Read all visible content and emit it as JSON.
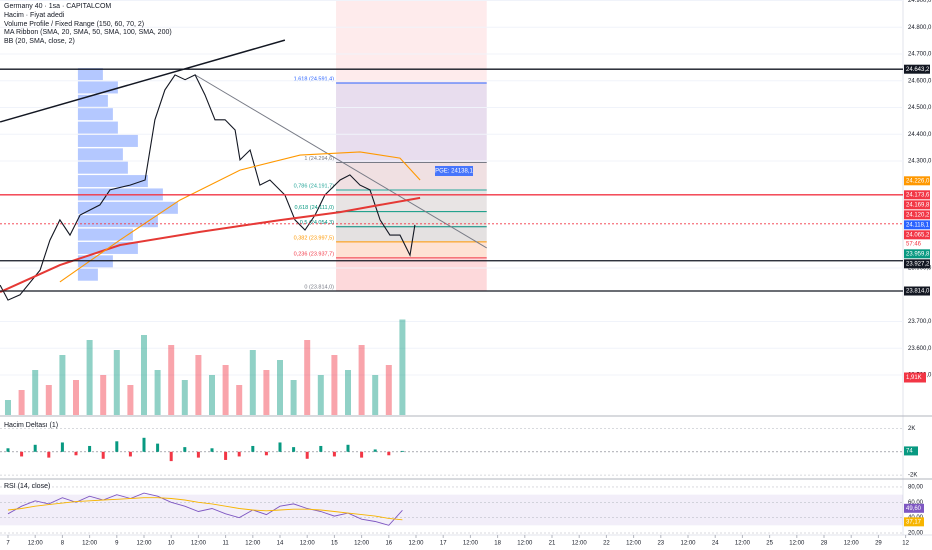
{
  "chart_data": [
    {
      "type": "line",
      "title": "Germany 40 · 1sa · CAPITALCOM",
      "legend_lines": [
        "Hacim · Fiyat adedi",
        "Volume Profile / Fixed Range (150, 60, 70, 2)",
        "MA Ribbon (SMA, 20, SMA, 50, SMA, 100, SMA, 200)",
        "BB (20, SMA, close, 2)"
      ],
      "annotation": "PGE: 24138,1",
      "countdown": "57:46",
      "xlim": [
        -0.294,
        32.904
      ],
      "ylim": [
        23350.5,
        24901.9
      ],
      "xticks": [
        {
          "value": 0,
          "label": "7"
        },
        {
          "value": 1,
          "label": "12:00"
        },
        {
          "value": 2,
          "label": "8"
        },
        {
          "value": 3,
          "label": "12:00"
        },
        {
          "value": 4,
          "label": "9"
        },
        {
          "value": 5,
          "label": "12:00"
        },
        {
          "value": 6,
          "label": "10"
        },
        {
          "value": 7,
          "label": "12:00"
        },
        {
          "value": 8,
          "label": "11"
        },
        {
          "value": 9,
          "label": "12:00"
        },
        {
          "value": 10,
          "label": "14"
        },
        {
          "value": 11,
          "label": "12:00"
        },
        {
          "value": 12,
          "label": "15"
        },
        {
          "value": 13,
          "label": "12:00"
        },
        {
          "value": 14,
          "label": "16"
        },
        {
          "value": 15,
          "label": "12:00"
        },
        {
          "value": 16,
          "label": "17"
        },
        {
          "value": 17,
          "label": "12:00"
        },
        {
          "value": 18,
          "label": "18"
        },
        {
          "value": 19,
          "label": "12:00"
        },
        {
          "value": 20,
          "label": "21"
        },
        {
          "value": 21,
          "label": "12:00"
        },
        {
          "value": 22,
          "label": "22"
        },
        {
          "value": 23,
          "label": "12:00"
        },
        {
          "value": 24,
          "label": "23"
        },
        {
          "value": 25,
          "label": "12:00"
        },
        {
          "value": 26,
          "label": "24"
        },
        {
          "value": 27,
          "label": "12:00"
        },
        {
          "value": 28,
          "label": "25"
        },
        {
          "value": 29,
          "label": "12:00"
        },
        {
          "value": 30,
          "label": "28"
        },
        {
          "value": 31,
          "label": "12:00"
        },
        {
          "value": 32,
          "label": "29"
        },
        {
          "value": 33,
          "label": "12"
        }
      ],
      "yticks": [
        {
          "value": 24900,
          "label": "24.900,0"
        },
        {
          "value": 24800,
          "label": "24.800,0"
        },
        {
          "value": 24700,
          "label": "24.700,0"
        },
        {
          "value": 24600,
          "label": "24.600,0"
        },
        {
          "value": 24500,
          "label": "24.500,0"
        },
        {
          "value": 24400,
          "label": "24.400,0"
        },
        {
          "value": 24300,
          "label": "24.300,0"
        },
        {
          "value": 23900,
          "label": "23.900,0"
        },
        {
          "value": 23700,
          "label": "23.700,0"
        },
        {
          "value": 23600,
          "label": "23.600,0"
        },
        {
          "value": 23500,
          "label": "23.500,0"
        }
      ],
      "series": [
        {
          "name": "Germany 40",
          "color": "#131722",
          "x": [
            -0.29,
            0,
            0.44,
            1.18,
            1.54,
            1.91,
            2.28,
            2.65,
            3.38,
            3.75,
            4.49,
            5.04,
            5.4,
            5.77,
            6.14,
            6.51,
            6.88,
            7.24,
            7.61,
            7.98,
            8.35,
            8.53,
            8.9,
            9.26,
            9.63,
            10.18,
            10.55,
            10.92,
            11.29,
            11.65,
            12.21,
            12.57,
            12.94,
            13.31,
            13.68,
            14.04,
            14.41,
            14.78,
            14.96
          ],
          "values": [
            23836,
            23780,
            23800,
            23892,
            24004,
            24080,
            24023,
            24098,
            24136,
            24192,
            24210,
            24229,
            24454,
            24566,
            24622,
            24604,
            24622,
            24548,
            24454,
            24454,
            24416,
            24304,
            24341,
            24210,
            24229,
            24173,
            24080,
            24042,
            24098,
            24173,
            24229,
            24248,
            24210,
            24192,
            24080,
            24023,
            24023,
            23948,
            24061
          ]
        },
        {
          "name": "SMA 200",
          "color": "#e53935",
          "x": [
            -0.29,
            1.91,
            4.12,
            7.06,
            10.0,
            12.21,
            13.68,
            15.15
          ],
          "values": [
            23810,
            23911,
            23986,
            24035,
            24079,
            24109,
            24136,
            24162
          ]
        },
        {
          "name": "SMA 100",
          "color": "#ff9800",
          "x": [
            1.91,
            4.12,
            6.32,
            8.53,
            10.74,
            12.94,
            14.41,
            15.15
          ],
          "values": [
            23848,
            24005,
            24154,
            24266,
            24322,
            24334,
            24311,
            24229
          ]
        }
      ],
      "trendlines": [
        {
          "color": "#131722",
          "x": [
            -0.29,
            10.18
          ],
          "values": [
            24446,
            24752
          ]
        },
        {
          "color": "#787b86",
          "x": [
            6.88,
            17.6
          ],
          "values": [
            24622,
            23975
          ]
        }
      ],
      "fib": {
        "x": [
          12.06,
          17.6
        ],
        "levels": [
          {
            "value": 24591.4,
            "label": "1,618 (24.591,4)",
            "color": "#2962ff"
          },
          {
            "value": 24294.6,
            "label": "1 (24.294,6)",
            "color": "#787b86"
          },
          {
            "value": 24191.7,
            "label": "0,786 (24.191,7)",
            "color": "#26a69a"
          },
          {
            "value": 24111.0,
            "label": "0,618 (24.111,0)",
            "color": "#089981"
          },
          {
            "value": 24054.3,
            "label": "0,5 (24.054,3)",
            "color": "#00897b"
          },
          {
            "value": 23997.5,
            "label": "0,382 (23.997,5)",
            "color": "#ff9800"
          },
          {
            "value": 23937.7,
            "label": "0,236 (23.937,7)",
            "color": "#f23645"
          },
          {
            "value": 23814.0,
            "label": "0 (23.814,0)",
            "color": "#787b86"
          }
        ]
      },
      "profile": {
        "x_start": 2.57,
        "prices": [
          23875,
          23925,
          23975,
          24025,
          24075,
          24125,
          24175,
          24225,
          24275,
          24325,
          24375,
          24425,
          24475,
          24525,
          24575,
          24625
        ],
        "values": [
          20,
          35,
          60,
          55,
          80,
          100,
          85,
          70,
          50,
          45,
          60,
          40,
          35,
          30,
          40,
          25
        ]
      },
      "levels": [
        {
          "value": 24643.2,
          "label": "24.643,2",
          "color": "#131722",
          "line": "solid"
        },
        {
          "value": 24226.0,
          "label": "24.226,0",
          "color": "#ff9800"
        },
        {
          "value": 24173.6,
          "label": "24.173,6",
          "color": "#f23645",
          "line": "solid"
        },
        {
          "value": 24169.8,
          "label": "24.169,8",
          "color": "#f23645"
        },
        {
          "value": 24120.2,
          "label": "24.120,2",
          "color": "#f23645"
        },
        {
          "value": 24118.1,
          "label": "24.118,1",
          "color": "#2962ff"
        },
        {
          "value": 24065.2,
          "label": "24.065,2",
          "color": "#f23645",
          "line": "dashed"
        },
        {
          "value": 23959.8,
          "label": "23.959,8",
          "color": "#089981"
        },
        {
          "value": 23927.2,
          "label": "23.927,2",
          "color": "#131722",
          "line": "solid"
        },
        {
          "value": 23814.0,
          "label": "23.814,0",
          "color": "#131722",
          "line": "solid"
        }
      ],
      "volume": {
        "x": [
          0,
          0.5,
          1,
          1.5,
          2,
          2.5,
          3,
          3.5,
          4,
          4.5,
          5,
          5.5,
          6,
          6.5,
          7,
          7.5,
          8,
          8.5,
          9,
          9.5,
          10,
          10.5,
          11,
          11.5,
          12,
          12.5,
          13,
          13.5,
          14,
          14.5
        ],
        "ylim": [
          0,
          8.3
        ],
        "values": [
          0.3,
          0.5,
          0.9,
          0.6,
          1.2,
          0.7,
          1.5,
          0.8,
          1.3,
          0.6,
          1.6,
          0.9,
          1.4,
          0.7,
          1.2,
          0.8,
          1.0,
          0.6,
          1.3,
          0.9,
          1.1,
          0.7,
          1.5,
          0.8,
          1.2,
          0.9,
          1.4,
          0.8,
          1.0,
          1.91
        ],
        "last_label": "1,91K"
      }
    },
    {
      "type": "bar",
      "title": "Hacim Deltası (1)",
      "ylim": [
        -2250,
        2900
      ],
      "yticks": [
        {
          "value": 2000,
          "label": "2K"
        },
        {
          "value": -2000,
          "label": "-2K"
        }
      ],
      "x": [
        0,
        0.5,
        1,
        1.5,
        2,
        2.5,
        3,
        3.5,
        4,
        4.5,
        5,
        5.5,
        6,
        6.5,
        7,
        7.5,
        8,
        8.5,
        9,
        9.5,
        10,
        10.5,
        11,
        11.5,
        12,
        12.5,
        13,
        13.5,
        14,
        14.5
      ],
      "values": [
        300,
        -400,
        600,
        -500,
        800,
        -300,
        500,
        -600,
        900,
        -400,
        1200,
        700,
        -800,
        400,
        -500,
        300,
        -700,
        -400,
        500,
        -300,
        800,
        400,
        -600,
        500,
        -400,
        600,
        -500,
        200,
        -300,
        74
      ]
    },
    {
      "type": "line",
      "title": "RSI (14, close)",
      "ylim": [
        17.4,
        89.1
      ],
      "band": [
        30,
        70
      ],
      "yticks": [
        {
          "value": 80,
          "label": "80,00"
        },
        {
          "value": 60,
          "label": "60,00"
        },
        {
          "value": 40,
          "label": "40,00"
        },
        {
          "value": 20,
          "label": "20,00"
        }
      ],
      "series": [
        {
          "name": "RSI",
          "color": "#7e57c2",
          "last_label": "49,60",
          "x": [
            0,
            0.5,
            1,
            1.5,
            2,
            2.5,
            3,
            3.5,
            4,
            4.5,
            5,
            5.5,
            6,
            6.5,
            7,
            7.5,
            8,
            8.5,
            9,
            9.5,
            10,
            10.5,
            11,
            11.5,
            12,
            12.5,
            13,
            13.5,
            14,
            14.5
          ],
          "values": [
            45,
            55,
            62,
            58,
            66,
            60,
            68,
            63,
            70,
            65,
            72,
            68,
            60,
            55,
            48,
            52,
            45,
            40,
            50,
            44,
            55,
            58,
            52,
            48,
            42,
            46,
            38,
            35,
            30,
            49.6
          ]
        },
        {
          "name": "RSI MA",
          "color": "#f7b500",
          "last_label": "37,17",
          "x": [
            0,
            0.5,
            1,
            1.5,
            2,
            2.5,
            3,
            3.5,
            4,
            4.5,
            5,
            5.5,
            6,
            6.5,
            7,
            7.5,
            8,
            8.5,
            9,
            9.5,
            10,
            10.5,
            11,
            11.5,
            12,
            12.5,
            13,
            13.5,
            14,
            14.5
          ],
          "values": [
            50,
            52,
            55,
            57,
            59,
            61,
            62,
            63,
            64,
            65,
            66,
            66,
            65,
            63,
            60,
            58,
            55,
            52,
            50,
            49,
            50,
            51,
            51,
            50,
            48,
            46,
            44,
            42,
            39,
            37.17
          ]
        }
      ]
    }
  ]
}
